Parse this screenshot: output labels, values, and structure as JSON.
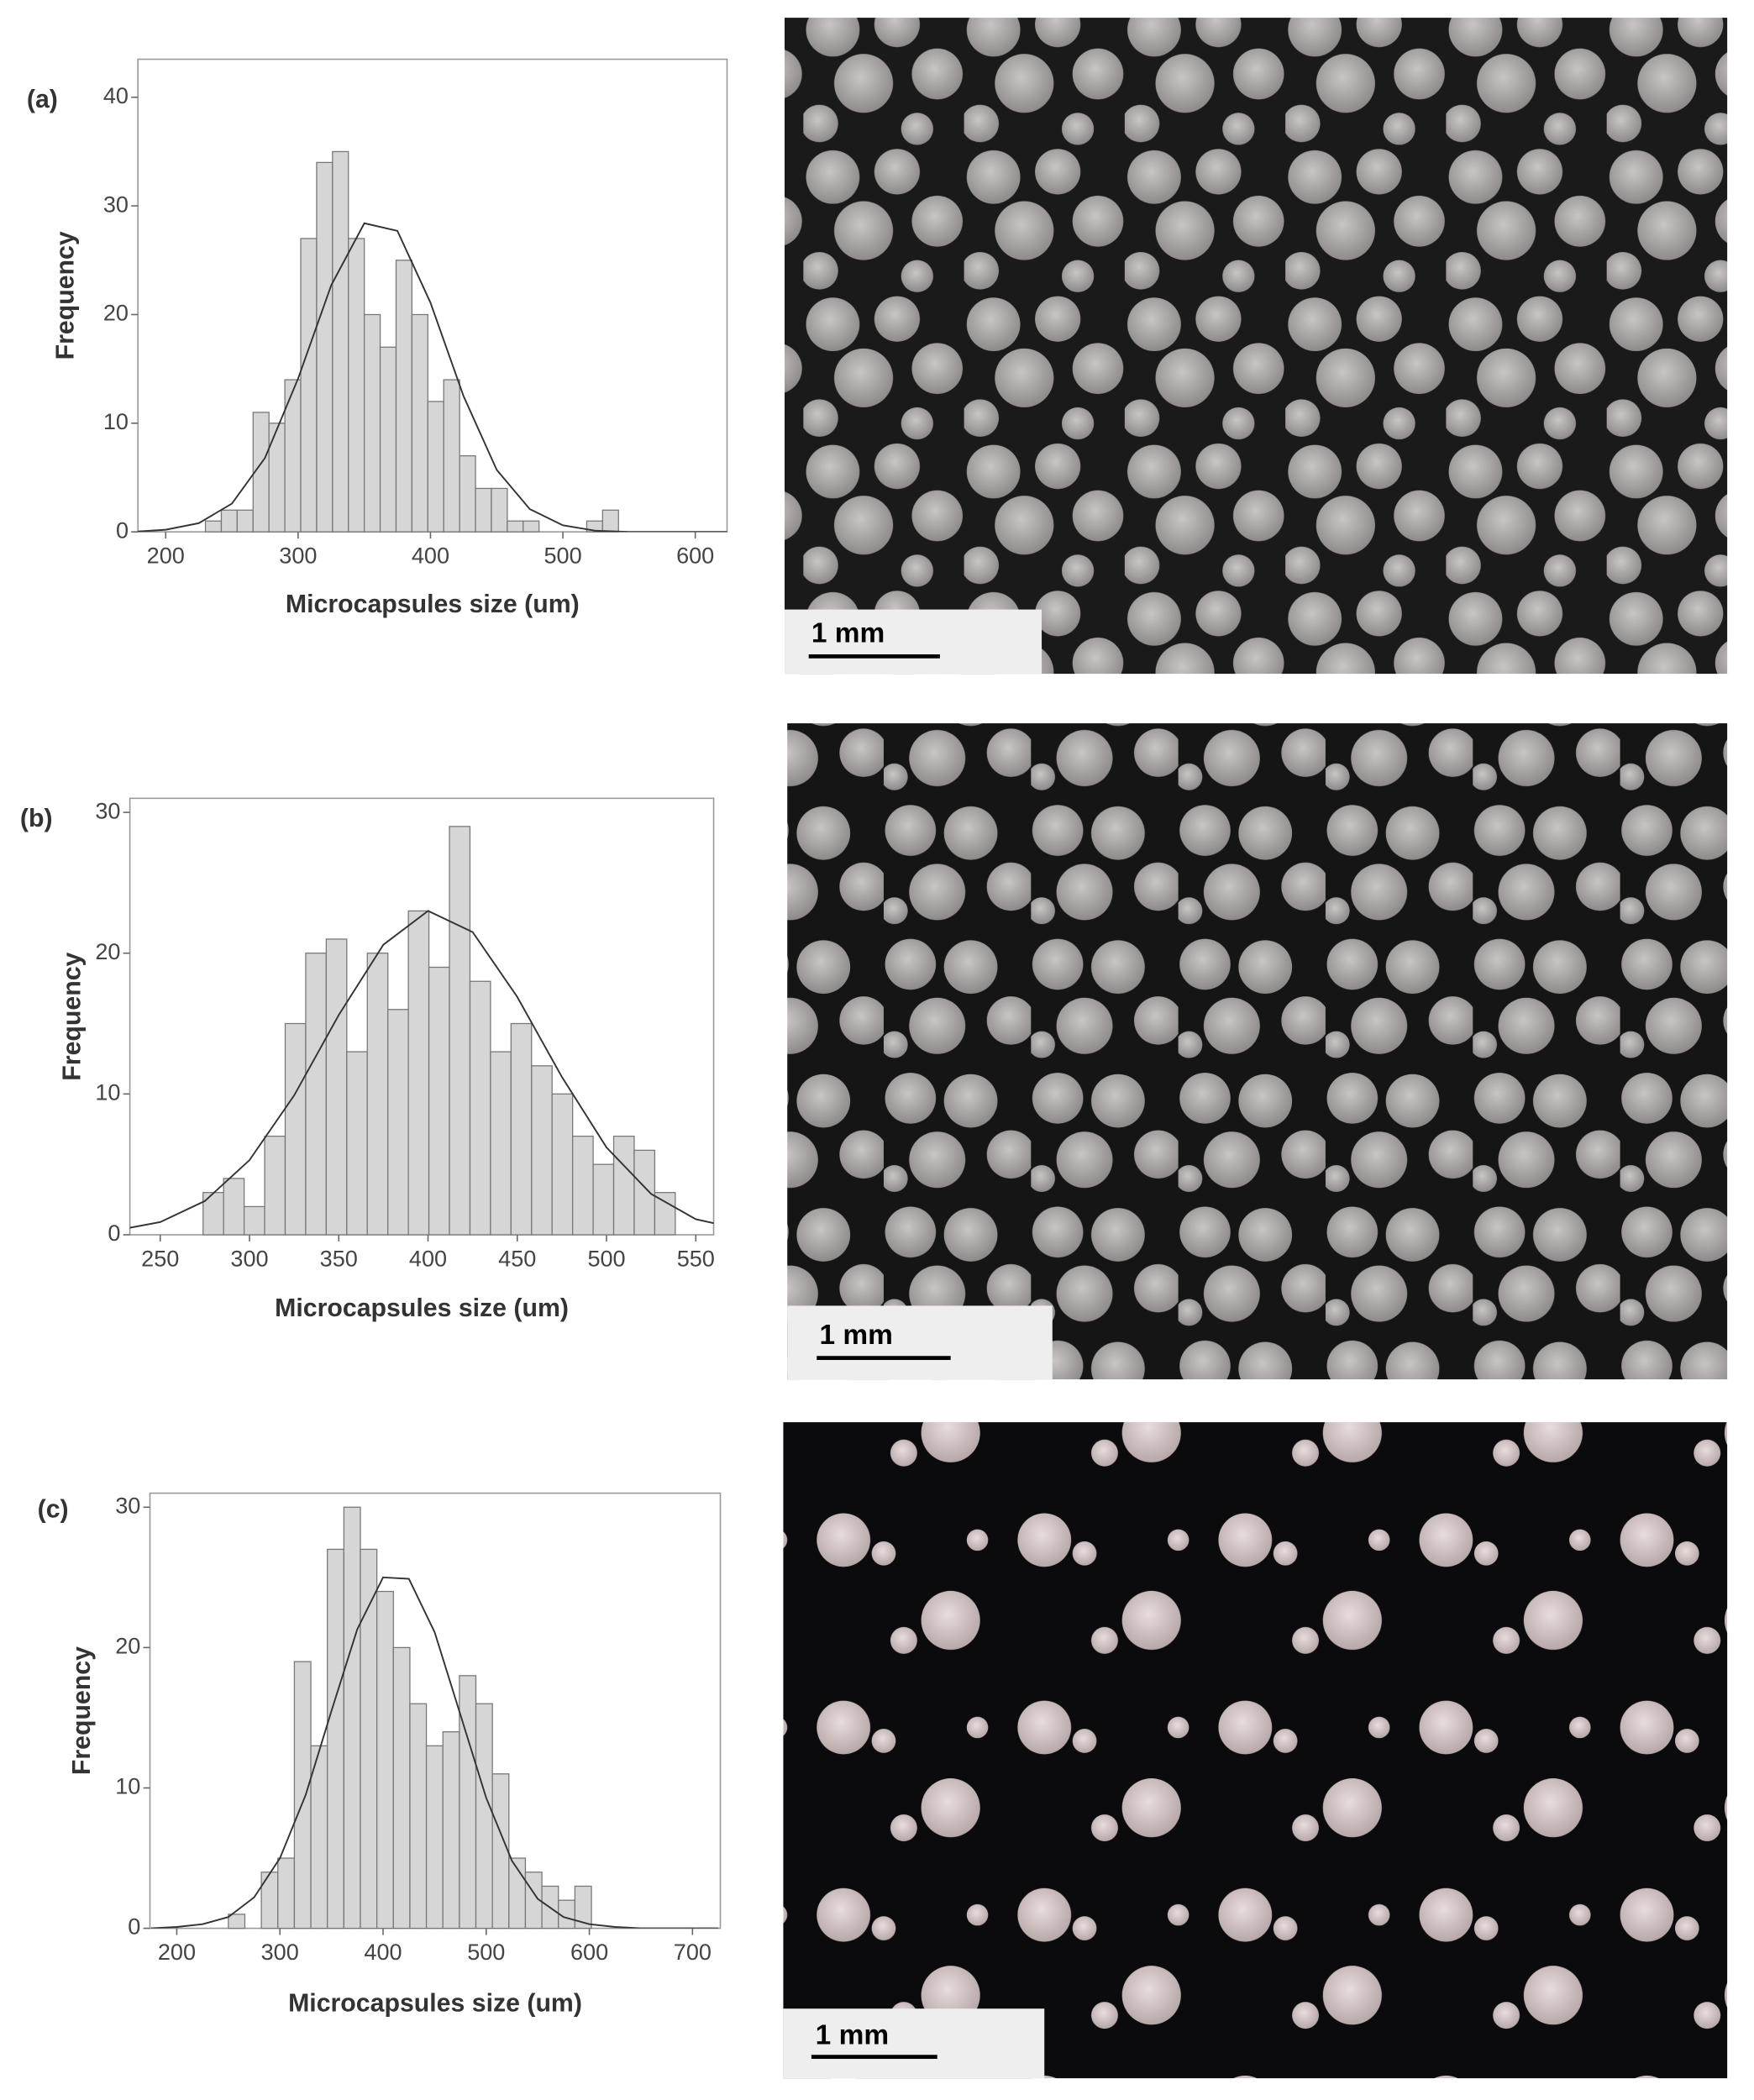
{
  "chart_data": [
    {
      "type": "histogram",
      "label": "(a)",
      "xlabel": "Microcapsules size (um)",
      "ylabel": "Frequency",
      "bins": [
        230,
        242,
        254,
        266,
        278,
        290,
        302,
        314,
        326,
        338,
        350,
        362,
        374,
        386,
        398,
        410,
        422,
        434,
        446,
        458,
        470,
        482,
        494,
        506,
        518,
        530,
        542
      ],
      "values": [
        1,
        2,
        2,
        11,
        10,
        14,
        27,
        34,
        35,
        27,
        20,
        17,
        25,
        20,
        12,
        14,
        7,
        4,
        4,
        1,
        1,
        0,
        0,
        0,
        1,
        2
      ],
      "color": "#d6d6d6",
      "curve": {
        "x": [
          175,
          200,
          225,
          250,
          275,
          300,
          325,
          350,
          375,
          400,
          425,
          450,
          475,
          500,
          525,
          550,
          575,
          600,
          625
        ],
        "y": [
          0.0,
          0.2,
          0.8,
          2.6,
          6.8,
          14.1,
          22.7,
          28.4,
          27.7,
          21.1,
          12.5,
          5.7,
          2.1,
          0.6,
          0.1,
          0.0,
          0.0,
          0.0,
          0.0
        ]
      },
      "xlim": [
        179,
        624
      ],
      "xticks": [
        200,
        300,
        400,
        500,
        600
      ],
      "ylim": [
        0,
        43.5
      ],
      "yticks": [
        0,
        10,
        20,
        30,
        40
      ]
    },
    {
      "type": "histogram",
      "label": "(b)",
      "xlabel": "Microcapsules size (um)",
      "ylabel": "Frequency",
      "bins": [
        274,
        285.5,
        297,
        308.5,
        320,
        331.5,
        343,
        354.5,
        366,
        377.5,
        389,
        400.5,
        412,
        423.5,
        435,
        446.5,
        458,
        469.5,
        481,
        492.5,
        504,
        515.5,
        527,
        538.5
      ],
      "values": [
        3,
        4,
        2,
        7,
        15,
        20,
        21,
        13,
        20,
        16,
        23,
        19,
        29,
        18,
        13,
        15,
        12,
        10,
        7,
        5,
        7,
        6,
        3
      ],
      "color": "#d6d6d6",
      "curve": {
        "x": [
          225,
          250,
          275,
          300,
          325,
          350,
          375,
          400,
          425,
          450,
          475,
          500,
          525,
          550,
          575
        ],
        "y": [
          0.3,
          0.9,
          2.4,
          5.3,
          9.9,
          15.6,
          20.6,
          23.0,
          21.5,
          16.9,
          11.2,
          6.2,
          2.9,
          1.1,
          0.4
        ]
      },
      "xlim": [
        233,
        560
      ],
      "xticks": [
        250,
        300,
        350,
        400,
        450,
        500,
        550
      ],
      "ylim": [
        0,
        31
      ],
      "yticks": [
        0,
        10,
        20,
        30
      ]
    },
    {
      "type": "histogram",
      "label": "(c)",
      "xlabel": "Microcapsules size (um)",
      "ylabel": "Frequency",
      "bins": [
        250,
        266,
        282,
        298,
        314,
        330,
        346,
        362,
        378,
        394,
        410,
        426,
        442,
        458,
        474,
        490,
        506,
        522,
        538,
        554,
        570,
        586,
        602
      ],
      "values": [
        1,
        0,
        4,
        5,
        19,
        13,
        27,
        30,
        27,
        24,
        20,
        16,
        13,
        14,
        18,
        16,
        11,
        5,
        4,
        3,
        2,
        3
      ],
      "color": "#d6d6d6",
      "curve": {
        "x": [
          175,
          200,
          225,
          250,
          275,
          300,
          325,
          350,
          375,
          400,
          425,
          450,
          475,
          500,
          525,
          550,
          575,
          600,
          625,
          650,
          675,
          700,
          725
        ],
        "y": [
          0.0,
          0.1,
          0.3,
          0.8,
          2.2,
          5.0,
          9.5,
          15.5,
          21.3,
          25.0,
          24.9,
          21.1,
          15.2,
          9.3,
          4.8,
          2.1,
          0.8,
          0.3,
          0.1,
          0.0,
          0.0,
          0.0,
          0.0
        ]
      },
      "xlim": [
        174,
        727
      ],
      "xticks": [
        200,
        300,
        400,
        500,
        600,
        700
      ],
      "ylim": [
        0,
        31
      ],
      "yticks": [
        0,
        10,
        20,
        30
      ]
    }
  ],
  "images": [
    {
      "scale_bar": "1 mm"
    },
    {
      "scale_bar": "1 mm"
    },
    {
      "scale_bar": "1 mm"
    }
  ]
}
